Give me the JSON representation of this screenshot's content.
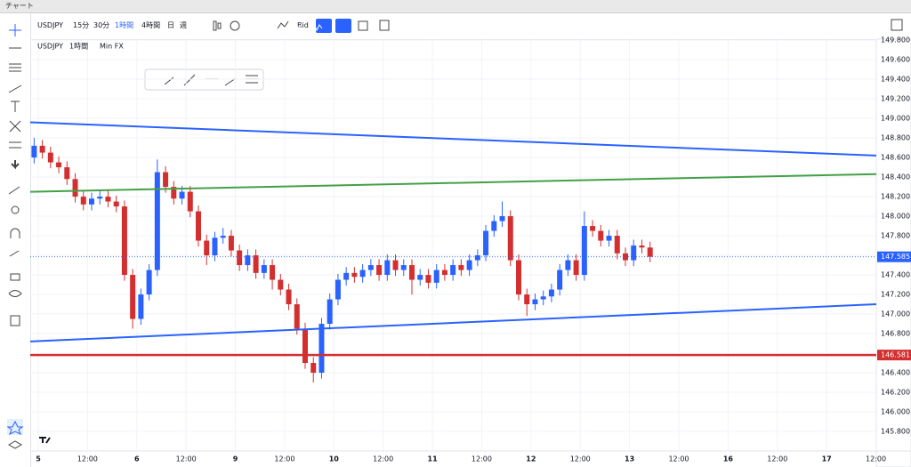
{
  "window_title": "チャート",
  "toolbar": {
    "symbol": "USDJPY",
    "intervals": [
      "15分",
      "30分",
      "1時間",
      "4時間",
      "日",
      "週"
    ],
    "price_type": "Bid"
  },
  "chart_data": {
    "type": "candlestick",
    "symbol": "USDJPY",
    "interval": "1時間",
    "source": "Min FX",
    "up_color": "#2962ff",
    "down_color": "#d32f2f",
    "grid": true,
    "xlim": [
      -1.95,
      204.1
    ],
    "ylim": [
      145.6,
      149.81
    ],
    "xticks": [
      {
        "value": 0,
        "label": "5"
      },
      {
        "value": 12,
        "label": "12:00"
      },
      {
        "value": 24,
        "label": "6"
      },
      {
        "value": 36,
        "label": "12:00"
      },
      {
        "value": 48,
        "label": "9"
      },
      {
        "value": 60,
        "label": "12:00"
      },
      {
        "value": 72,
        "label": "10"
      },
      {
        "value": 84,
        "label": "12:00"
      },
      {
        "value": 96,
        "label": "11"
      },
      {
        "value": 108,
        "label": "12:00"
      },
      {
        "value": 120,
        "label": "12"
      },
      {
        "value": 132,
        "label": "12:00"
      },
      {
        "value": 144,
        "label": "13"
      },
      {
        "value": 156,
        "label": "12:00"
      },
      {
        "value": 168,
        "label": "16"
      },
      {
        "value": 180,
        "label": "12:00"
      },
      {
        "value": 192,
        "label": "17"
      },
      {
        "value": 204,
        "label": "12:00"
      }
    ],
    "yticks": [
      {
        "value": 145.8,
        "label": "145.800"
      },
      {
        "value": 146.0,
        "label": "146.000"
      },
      {
        "value": 146.2,
        "label": "146.200"
      },
      {
        "value": 146.4,
        "label": "146.400"
      },
      {
        "value": 146.6,
        "label": "146.600"
      },
      {
        "value": 146.8,
        "label": "146.800"
      },
      {
        "value": 147.0,
        "label": "147.000"
      },
      {
        "value": 147.2,
        "label": "147.200"
      },
      {
        "value": 147.4,
        "label": "147.400"
      },
      {
        "value": 147.6,
        "label": "147.600"
      },
      {
        "value": 147.8,
        "label": "147.800"
      },
      {
        "value": 148.0,
        "label": "148.000"
      },
      {
        "value": 148.2,
        "label": "148.200"
      },
      {
        "value": 148.4,
        "label": "148.400"
      },
      {
        "value": 148.6,
        "label": "148.600"
      },
      {
        "value": 148.8,
        "label": "148.800"
      },
      {
        "value": 149.0,
        "label": "149.000"
      },
      {
        "value": 149.2,
        "label": "149.200"
      },
      {
        "value": 149.4,
        "label": "149.400"
      },
      {
        "value": 149.6,
        "label": "149.600"
      },
      {
        "value": 149.8,
        "label": "149.800"
      }
    ],
    "x": [
      -1,
      1,
      3,
      5,
      7,
      9,
      11,
      13,
      15,
      17,
      19,
      21,
      23,
      25,
      27,
      29,
      31,
      33,
      35,
      37,
      39,
      41,
      43,
      45,
      47,
      49,
      51,
      53,
      55,
      57,
      59,
      61,
      63,
      65,
      67,
      69,
      71,
      73,
      75,
      77,
      79,
      81,
      83,
      85,
      87,
      89,
      91,
      93,
      95,
      97,
      99,
      101,
      103,
      105,
      107,
      109,
      111,
      113,
      115,
      117,
      119,
      121,
      123,
      125,
      127,
      129,
      131,
      133,
      135,
      137,
      139,
      141,
      143,
      145,
      147,
      149
    ],
    "open": [
      148.6,
      148.72,
      148.65,
      148.55,
      148.5,
      148.38,
      148.2,
      148.12,
      148.18,
      148.2,
      148.15,
      148.1,
      147.4,
      146.95,
      147.2,
      147.45,
      148.45,
      148.3,
      148.18,
      148.25,
      148.05,
      147.75,
      147.6,
      147.78,
      147.8,
      147.65,
      147.5,
      147.6,
      147.42,
      147.5,
      147.35,
      147.25,
      147.1,
      146.85,
      146.5,
      146.4,
      146.9,
      147.15,
      147.35,
      147.42,
      147.38,
      147.45,
      147.5,
      147.4,
      147.55,
      147.45,
      147.5,
      147.35,
      147.4,
      147.32,
      147.45,
      147.4,
      147.5,
      147.45,
      147.55,
      147.6,
      147.85,
      147.95,
      148.0,
      147.55,
      147.2,
      147.1,
      147.15,
      147.18,
      147.25,
      147.45,
      147.55,
      147.4,
      147.9,
      147.85,
      147.75,
      147.8,
      147.62,
      147.55,
      147.7,
      147.68
    ],
    "high": [
      148.8,
      148.78,
      148.71,
      148.61,
      148.56,
      148.44,
      148.26,
      148.24,
      148.26,
      148.26,
      148.21,
      148.16,
      147.46,
      147.26,
      147.51,
      148.58,
      148.51,
      148.36,
      148.31,
      148.31,
      148.11,
      147.81,
      147.84,
      147.88,
      147.86,
      147.71,
      147.66,
      147.66,
      147.56,
      147.56,
      147.41,
      147.31,
      147.16,
      146.91,
      146.56,
      146.96,
      147.21,
      147.41,
      147.48,
      147.48,
      147.51,
      147.56,
      147.56,
      147.61,
      147.61,
      147.56,
      147.56,
      147.46,
      147.46,
      147.51,
      147.51,
      147.56,
      147.56,
      147.61,
      147.66,
      147.91,
      148.01,
      148.15,
      148.06,
      147.61,
      147.26,
      147.21,
      147.24,
      147.31,
      147.51,
      147.61,
      147.61,
      148.05,
      147.96,
      147.91,
      147.86,
      147.86,
      147.68,
      147.76,
      147.76,
      147.74
    ],
    "low": [
      148.54,
      148.59,
      148.49,
      148.44,
      148.32,
      148.14,
      148.06,
      148.06,
      148.12,
      148.09,
      148.04,
      147.34,
      146.85,
      146.89,
      147.14,
      147.39,
      148.24,
      148.12,
      148.12,
      147.99,
      147.69,
      147.5,
      147.54,
      147.72,
      147.59,
      147.44,
      147.44,
      147.36,
      147.36,
      147.25,
      147.19,
      147.04,
      146.79,
      146.44,
      146.3,
      146.34,
      146.84,
      147.09,
      147.29,
      147.32,
      147.32,
      147.39,
      147.34,
      147.34,
      147.39,
      147.39,
      147.2,
      147.29,
      147.26,
      147.26,
      147.34,
      147.34,
      147.39,
      147.39,
      147.49,
      147.54,
      147.79,
      147.89,
      147.49,
      147.14,
      146.98,
      147.04,
      147.09,
      147.12,
      147.19,
      147.39,
      147.34,
      147.34,
      147.79,
      147.69,
      147.69,
      147.56,
      147.49,
      147.49,
      147.62,
      147.53
    ],
    "close": [
      148.72,
      148.65,
      148.55,
      148.5,
      148.38,
      148.2,
      148.12,
      148.18,
      148.2,
      148.15,
      148.1,
      147.4,
      146.95,
      147.2,
      147.45,
      148.45,
      148.3,
      148.18,
      148.25,
      148.05,
      147.75,
      147.6,
      147.78,
      147.8,
      147.65,
      147.5,
      147.6,
      147.42,
      147.5,
      147.35,
      147.25,
      147.1,
      146.85,
      146.5,
      146.4,
      146.9,
      147.15,
      147.35,
      147.42,
      147.38,
      147.45,
      147.5,
      147.4,
      147.55,
      147.45,
      147.5,
      147.35,
      147.4,
      147.32,
      147.45,
      147.4,
      147.5,
      147.45,
      147.55,
      147.6,
      147.85,
      147.95,
      148.0,
      147.55,
      147.2,
      147.1,
      147.15,
      147.18,
      147.25,
      147.45,
      147.55,
      147.4,
      147.9,
      147.85,
      147.75,
      147.8,
      147.62,
      147.55,
      147.7,
      147.68,
      147.585
    ],
    "lines": [
      {
        "color": "#2962ff",
        "y": [
          148.96,
          148.62
        ]
      },
      {
        "color": "#43a047",
        "y": [
          148.25,
          148.43
        ]
      },
      {
        "color": "#2962ff",
        "y": [
          146.72,
          147.1
        ]
      }
    ],
    "hline": {
      "value": 146.581,
      "color": "#d32f2f"
    }
  }
}
